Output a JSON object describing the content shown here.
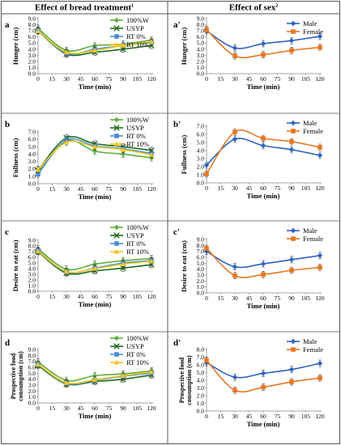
{
  "header": {
    "left": "Effect of bread treatment",
    "left_sup": "1",
    "right": "Effect of sex",
    "right_sup": "2"
  },
  "colors": {
    "W100": "#5fae3c",
    "USYP": "#1f6b1f",
    "RT0": "#4a8fd6",
    "RT10": "#f2c61f",
    "Male": "#2f63c0",
    "Female": "#e87722"
  },
  "chart_data": [
    {
      "id": "a",
      "label": "a",
      "type": "line",
      "ylabel": "Hunger (cm)",
      "xlabel": "Time (min)",
      "xlim": [
        0,
        120
      ],
      "ylim": [
        0,
        9
      ],
      "xticks": [
        0,
        15,
        30,
        45,
        60,
        75,
        90,
        105,
        120
      ],
      "yticks": [
        0,
        1,
        2,
        3,
        4,
        5,
        6,
        7,
        8,
        9
      ],
      "x": [
        0,
        30,
        60,
        90,
        120
      ],
      "series": [
        {
          "name": "100%W",
          "color_key": "W100",
          "marker": "diamond",
          "values": [
            7.4,
            3.8,
            4.6,
            4.8,
            5.5
          ]
        },
        {
          "name": "USYP",
          "color_key": "USYP",
          "marker": "x",
          "values": [
            7.0,
            3.2,
            3.5,
            4.0,
            4.6
          ]
        },
        {
          "name": "RT 0%",
          "color_key": "RT0",
          "marker": "square",
          "values": [
            7.1,
            3.3,
            4.0,
            4.6,
            5.1
          ]
        },
        {
          "name": "RT 10%",
          "color_key": "RT10",
          "marker": "triangle",
          "values": [
            7.0,
            3.5,
            3.8,
            4.6,
            5.2
          ]
        }
      ]
    },
    {
      "id": "a2",
      "label": "a'",
      "type": "line",
      "ylabel": "Hunger (cm)",
      "xlabel": "Time (min)",
      "xlim": [
        0,
        120
      ],
      "ylim": [
        0,
        9
      ],
      "xticks": [
        0,
        15,
        30,
        45,
        60,
        75,
        90,
        105,
        120
      ],
      "yticks": [
        0,
        1,
        2,
        3,
        4,
        5,
        6,
        7,
        8,
        9
      ],
      "x": [
        0,
        30,
        60,
        90,
        120
      ],
      "series": [
        {
          "name": "Male",
          "color_key": "Male",
          "marker": "diamond",
          "values": [
            7.0,
            4.2,
            4.9,
            5.4,
            6.1
          ]
        },
        {
          "name": "Female",
          "color_key": "Female",
          "marker": "square",
          "values": [
            7.2,
            2.9,
            3.1,
            3.8,
            4.3
          ]
        }
      ]
    },
    {
      "id": "b",
      "label": "b",
      "type": "line",
      "ylabel": "Fullness (cm)",
      "xlabel": "Time (min)",
      "xlim": [
        0,
        120
      ],
      "ylim": [
        0,
        7
      ],
      "xticks": [
        0,
        15,
        30,
        45,
        60,
        75,
        90,
        105,
        120
      ],
      "yticks": [
        0,
        1,
        2,
        3,
        4,
        5,
        6,
        7
      ],
      "x": [
        0,
        30,
        60,
        90,
        120
      ],
      "series": [
        {
          "name": "100%W",
          "color_key": "W100",
          "marker": "diamond",
          "values": [
            1.5,
            5.8,
            4.4,
            4.0,
            3.5
          ]
        },
        {
          "name": "USYP",
          "color_key": "USYP",
          "marker": "x",
          "values": [
            1.8,
            6.2,
            5.4,
            5.0,
            4.5
          ]
        },
        {
          "name": "RT 0%",
          "color_key": "RT0",
          "marker": "square",
          "values": [
            1.3,
            5.9,
            5.1,
            4.7,
            4.1
          ]
        },
        {
          "name": "RT 10%",
          "color_key": "RT10",
          "marker": "triangle",
          "values": [
            1.9,
            5.6,
            5.0,
            4.6,
            3.9
          ]
        }
      ]
    },
    {
      "id": "b2",
      "label": "b'",
      "type": "line",
      "ylabel": "Fullness (cm)",
      "xlabel": "Time (min)",
      "xlim": [
        0,
        120
      ],
      "ylim": [
        0,
        7
      ],
      "xticks": [
        0,
        15,
        30,
        45,
        60,
        75,
        90,
        105,
        120
      ],
      "yticks": [
        0,
        1,
        2,
        3,
        4,
        5,
        6,
        7
      ],
      "x": [
        0,
        30,
        60,
        90,
        120
      ],
      "series": [
        {
          "name": "Male",
          "color_key": "Male",
          "marker": "diamond",
          "values": [
            2.2,
            5.4,
            4.6,
            4.1,
            3.4
          ]
        },
        {
          "name": "Female",
          "color_key": "Female",
          "marker": "square",
          "values": [
            1.1,
            6.3,
            5.5,
            5.1,
            4.4
          ]
        }
      ]
    },
    {
      "id": "c",
      "label": "c",
      "type": "line",
      "ylabel": "Desire to eat (cm)",
      "xlabel": "Time (min)",
      "xlim": [
        0,
        120
      ],
      "ylim": [
        0,
        9
      ],
      "xticks": [
        0,
        15,
        30,
        45,
        60,
        75,
        90,
        105,
        120
      ],
      "yticks": [
        0,
        1,
        2,
        3,
        4,
        5,
        6,
        7,
        8,
        9
      ],
      "x": [
        0,
        30,
        60,
        90,
        120
      ],
      "series": [
        {
          "name": "100%W",
          "color_key": "W100",
          "marker": "diamond",
          "values": [
            7.5,
            3.9,
            4.8,
            5.4,
            5.8
          ]
        },
        {
          "name": "USYP",
          "color_key": "USYP",
          "marker": "x",
          "values": [
            7.0,
            3.2,
            3.6,
            4.1,
            4.7
          ]
        },
        {
          "name": "RT 0%",
          "color_key": "RT0",
          "marker": "square",
          "values": [
            7.2,
            3.4,
            4.1,
            5.0,
            5.4
          ]
        },
        {
          "name": "RT 10%",
          "color_key": "RT10",
          "marker": "triangle",
          "values": [
            7.1,
            3.5,
            4.0,
            4.8,
            5.3
          ]
        }
      ]
    },
    {
      "id": "c2",
      "label": "c'",
      "type": "line",
      "ylabel": "Desire to eat (cm)",
      "xlabel": "Time (min)",
      "xlim": [
        0,
        120
      ],
      "ylim": [
        0,
        9
      ],
      "xticks": [
        0,
        15,
        30,
        45,
        60,
        75,
        90,
        105,
        120
      ],
      "yticks": [
        0,
        1,
        2,
        3,
        4,
        5,
        6,
        7,
        8,
        9
      ],
      "x": [
        0,
        30,
        60,
        90,
        120
      ],
      "series": [
        {
          "name": "Male",
          "color_key": "Male",
          "marker": "diamond",
          "values": [
            7.0,
            4.4,
            4.9,
            5.6,
            6.3
          ]
        },
        {
          "name": "Female",
          "color_key": "Female",
          "marker": "square",
          "values": [
            7.5,
            2.9,
            3.1,
            3.8,
            4.3
          ]
        }
      ]
    },
    {
      "id": "d",
      "label": "d",
      "type": "line",
      "ylabel": "Prospective food consumption (cm)",
      "ylabel_lines": [
        "Prospective food",
        "consumption (cm)"
      ],
      "xlabel": "Time (min)",
      "xlim": [
        0,
        120
      ],
      "ylim": [
        0,
        9
      ],
      "xticks": [
        0,
        15,
        30,
        45,
        60,
        75,
        90,
        105,
        120
      ],
      "yticks": [
        0,
        1,
        2,
        3,
        4,
        5,
        6,
        7,
        8,
        9
      ],
      "x": [
        0,
        30,
        60,
        90,
        120
      ],
      "series": [
        {
          "name": "100%W",
          "color_key": "W100",
          "marker": "diamond",
          "values": [
            6.9,
            3.8,
            4.6,
            4.9,
            5.4
          ]
        },
        {
          "name": "USYP",
          "color_key": "USYP",
          "marker": "x",
          "values": [
            6.3,
            3.2,
            3.6,
            4.0,
            4.7
          ]
        },
        {
          "name": "RT 0%",
          "color_key": "RT0",
          "marker": "square",
          "values": [
            6.5,
            3.3,
            3.8,
            4.5,
            5.0
          ]
        },
        {
          "name": "RT 10%",
          "color_key": "RT10",
          "marker": "triangle",
          "values": [
            6.5,
            3.4,
            3.9,
            4.6,
            5.2
          ]
        }
      ]
    },
    {
      "id": "d2",
      "label": "d'",
      "type": "line",
      "ylabel": "Prospective food consumption (cm)",
      "ylabel_lines": [
        "Prospective food",
        "consumption (cm)"
      ],
      "xlabel": "Time (min)",
      "xlim": [
        0,
        120
      ],
      "ylim": [
        0,
        8
      ],
      "xticks": [
        0,
        15,
        30,
        45,
        60,
        75,
        90,
        105,
        120
      ],
      "yticks": [
        0,
        1,
        2,
        3,
        4,
        5,
        6,
        7,
        8
      ],
      "x": [
        0,
        30,
        60,
        90,
        120
      ],
      "series": [
        {
          "name": "Male",
          "color_key": "Male",
          "marker": "diamond",
          "values": [
            6.3,
            4.4,
            4.9,
            5.4,
            6.2
          ]
        },
        {
          "name": "Female",
          "color_key": "Female",
          "marker": "square",
          "values": [
            6.6,
            2.7,
            3.1,
            3.8,
            4.3
          ]
        }
      ]
    }
  ]
}
